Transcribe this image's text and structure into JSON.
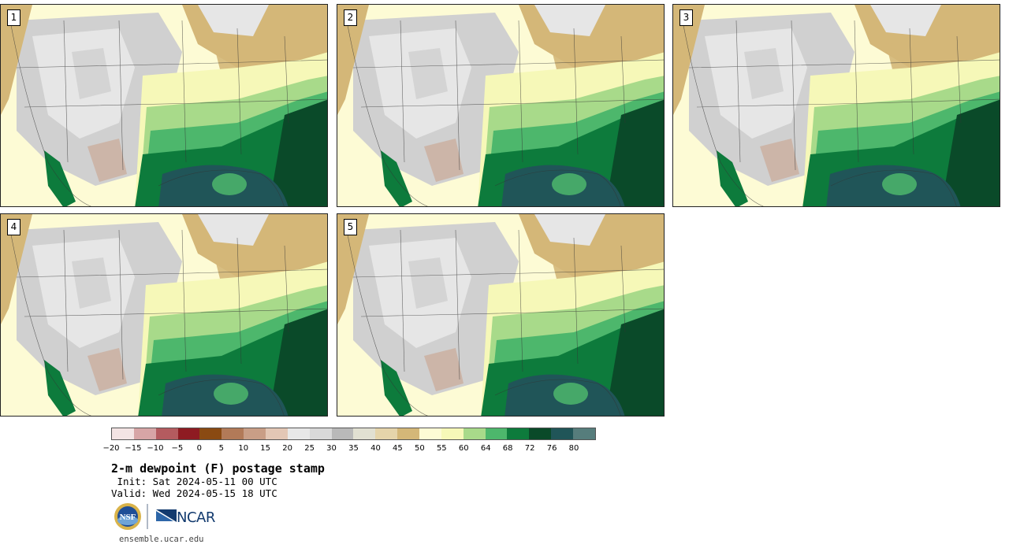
{
  "stamps": [
    {
      "label": "1"
    },
    {
      "label": "2"
    },
    {
      "label": "3"
    },
    {
      "label": "4"
    },
    {
      "label": "5"
    }
  ],
  "colorbar": {
    "colors": [
      "#f3e4e4",
      "#d7a5a6",
      "#b45b5f",
      "#8e1b22",
      "#8a4a12",
      "#b27a58",
      "#c99e86",
      "#e3c7b5",
      "#e8e8e8",
      "#d9d9d9",
      "#b9b9b9",
      "#e1e0d2",
      "#e5d4aa",
      "#d4b778",
      "#fdfbd5",
      "#f6f8b8",
      "#a8da8a",
      "#4db76c",
      "#0d7b3c",
      "#0a4a29",
      "#205558",
      "#567d7c"
    ],
    "ticks": [
      "−20",
      "−15",
      "−10",
      "−5",
      "0",
      "5",
      "10",
      "15",
      "20",
      "25",
      "30",
      "35",
      "40",
      "45",
      "50",
      "55",
      "60",
      "64",
      "68",
      "72",
      "76",
      "80"
    ]
  },
  "title": "2-m dewpoint (F) postage stamp",
  "init": " Init: Sat 2024-05-11 00 UTC",
  "valid": "Valid: Wed 2024-05-15 18 UTC",
  "logos": {
    "nsf": "NSF",
    "ncar": "NCAR",
    "nsf_icon": "nsf-seal-icon",
    "ncar_icon": "ncar-wing-icon"
  },
  "url": "ensemble.ucar.edu",
  "map_colors": {
    "land_light": "#fdfbd5",
    "yellow": "#f6f8b8",
    "light_green": "#a8da8a",
    "green": "#4db76c",
    "dark_green": "#0d7b3c",
    "darkest_green": "#0a4a29",
    "ocean": "#205558",
    "grey": "#d0d0d0",
    "light_grey": "#e6e6e6",
    "tan": "#d4b778",
    "brown": "#c99e86"
  }
}
